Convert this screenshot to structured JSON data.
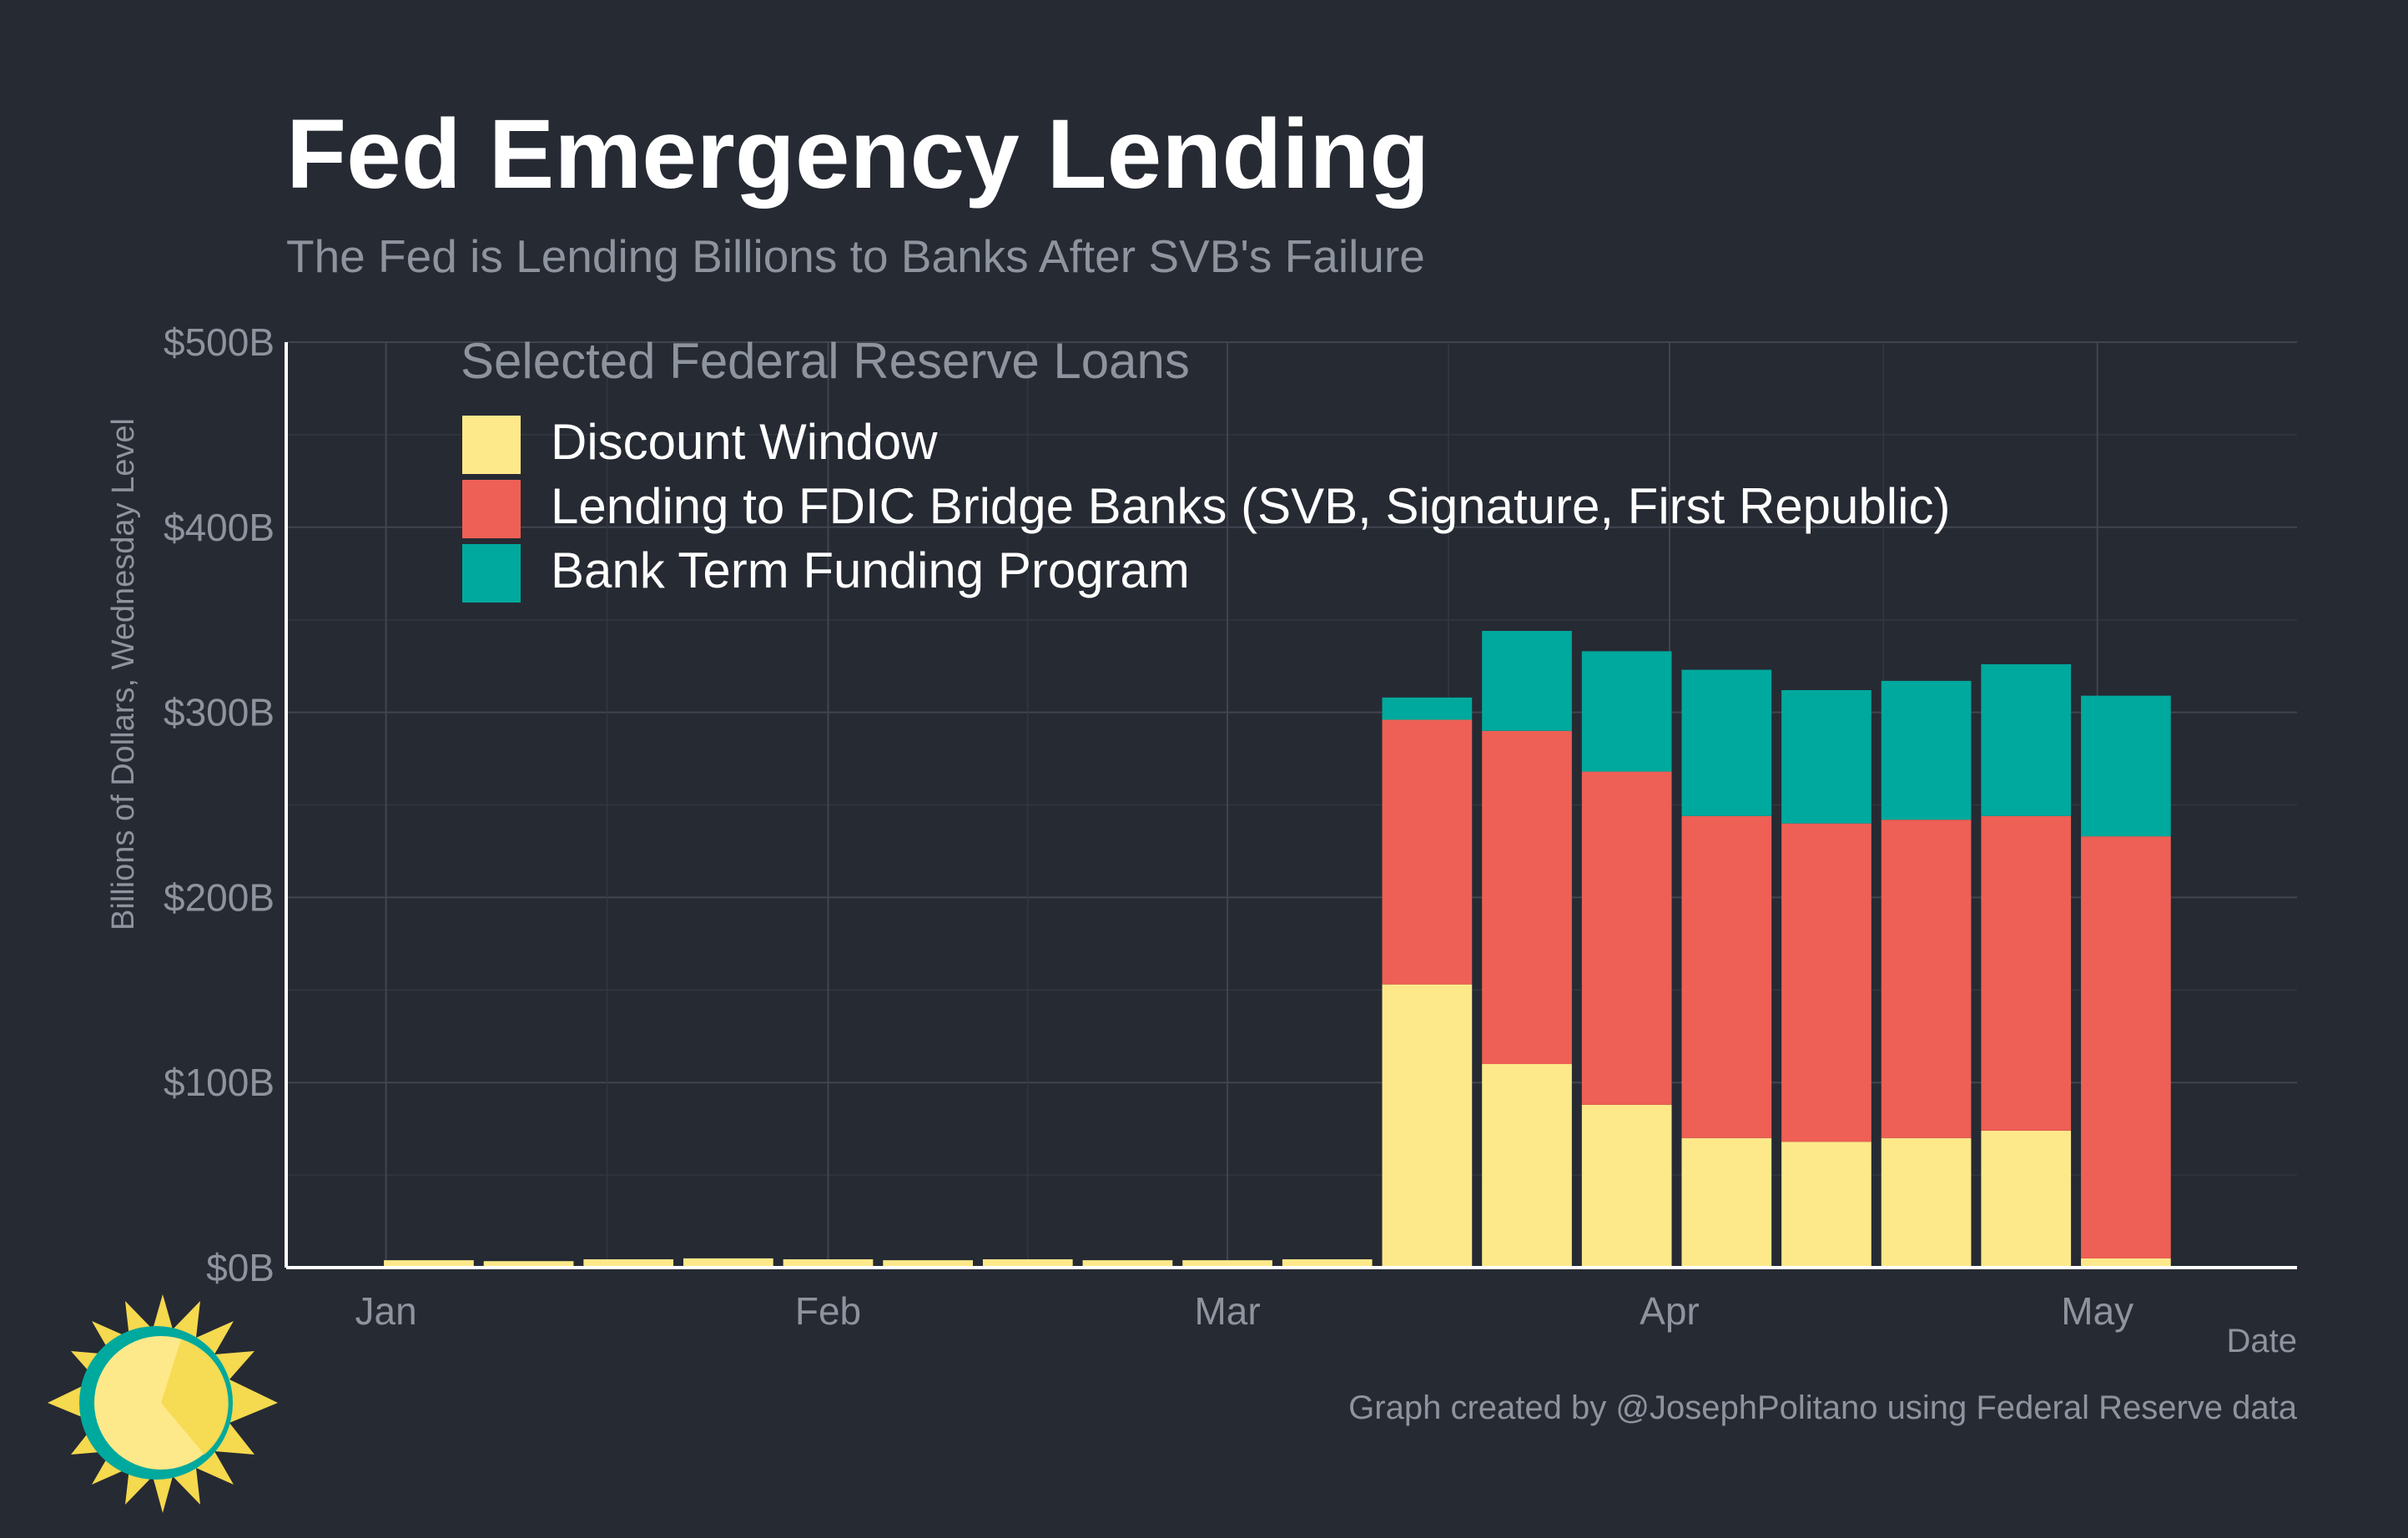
{
  "chart_data": {
    "type": "bar",
    "stacked": true,
    "title": "Fed Emergency Lending",
    "subtitle": "The Fed is Lending Billions to Banks After SVB's Failure",
    "ylabel": "Billions of Dollars, Wednesday Level",
    "xlabel": "Date",
    "ylim": [
      0,
      500
    ],
    "yticks": [
      0,
      100,
      200,
      300,
      400,
      500
    ],
    "ytick_labels": [
      "$0B",
      "$100B",
      "$200B",
      "$300B",
      "$400B",
      "$500B"
    ],
    "x_domain": [
      "2022-12-25",
      "2023-05-15"
    ],
    "xticks": [
      {
        "date": "2023-01-01",
        "label": "Jan"
      },
      {
        "date": "2023-02-01",
        "label": "Feb"
      },
      {
        "date": "2023-03-01",
        "label": "Mar"
      },
      {
        "date": "2023-04-01",
        "label": "Apr"
      },
      {
        "date": "2023-05-01",
        "label": "May"
      }
    ],
    "dates": [
      "2023-01-04",
      "2023-01-11",
      "2023-01-18",
      "2023-01-25",
      "2023-02-01",
      "2023-02-08",
      "2023-02-15",
      "2023-02-22",
      "2023-03-01",
      "2023-03-08",
      "2023-03-15",
      "2023-03-22",
      "2023-03-29",
      "2023-04-05",
      "2023-04-12",
      "2023-04-19",
      "2023-04-26",
      "2023-05-03"
    ],
    "legend_title": "Selected Federal Reserve Loans",
    "legend_position": "top-left",
    "grid": true,
    "series": [
      {
        "name": "Discount Window",
        "color": "#fee98a",
        "values": [
          4,
          3.5,
          4.5,
          5,
          4.5,
          4,
          4.5,
          4,
          4,
          4.5,
          153,
          110,
          88,
          70,
          68,
          70,
          74,
          5
        ]
      },
      {
        "name": "Lending to FDIC Bridge Banks (SVB, Signature, First Republic)",
        "color": "#ee6055",
        "values": [
          0,
          0,
          0,
          0,
          0,
          0,
          0,
          0,
          0,
          0,
          143,
          180,
          180,
          174,
          172,
          172,
          170,
          228
        ]
      },
      {
        "name": "Bank Term Funding Program",
        "color": "#00a99d",
        "values": [
          0,
          0,
          0,
          0,
          0,
          0,
          0,
          0,
          0,
          0,
          12,
          54,
          65,
          79,
          72,
          75,
          82,
          76
        ]
      }
    ]
  },
  "credit": "Graph created by @JosephPolitano using Federal Reserve data",
  "colors": {
    "background": "#262a33",
    "grid": "#3d424c",
    "axis_text": "#8e949e",
    "title": "#ffffff",
    "logo_ring": "#00a99d",
    "logo_sun": "#fee98a",
    "logo_rays": "#f5d94e"
  },
  "logo_icon": "sun-clock-icon"
}
